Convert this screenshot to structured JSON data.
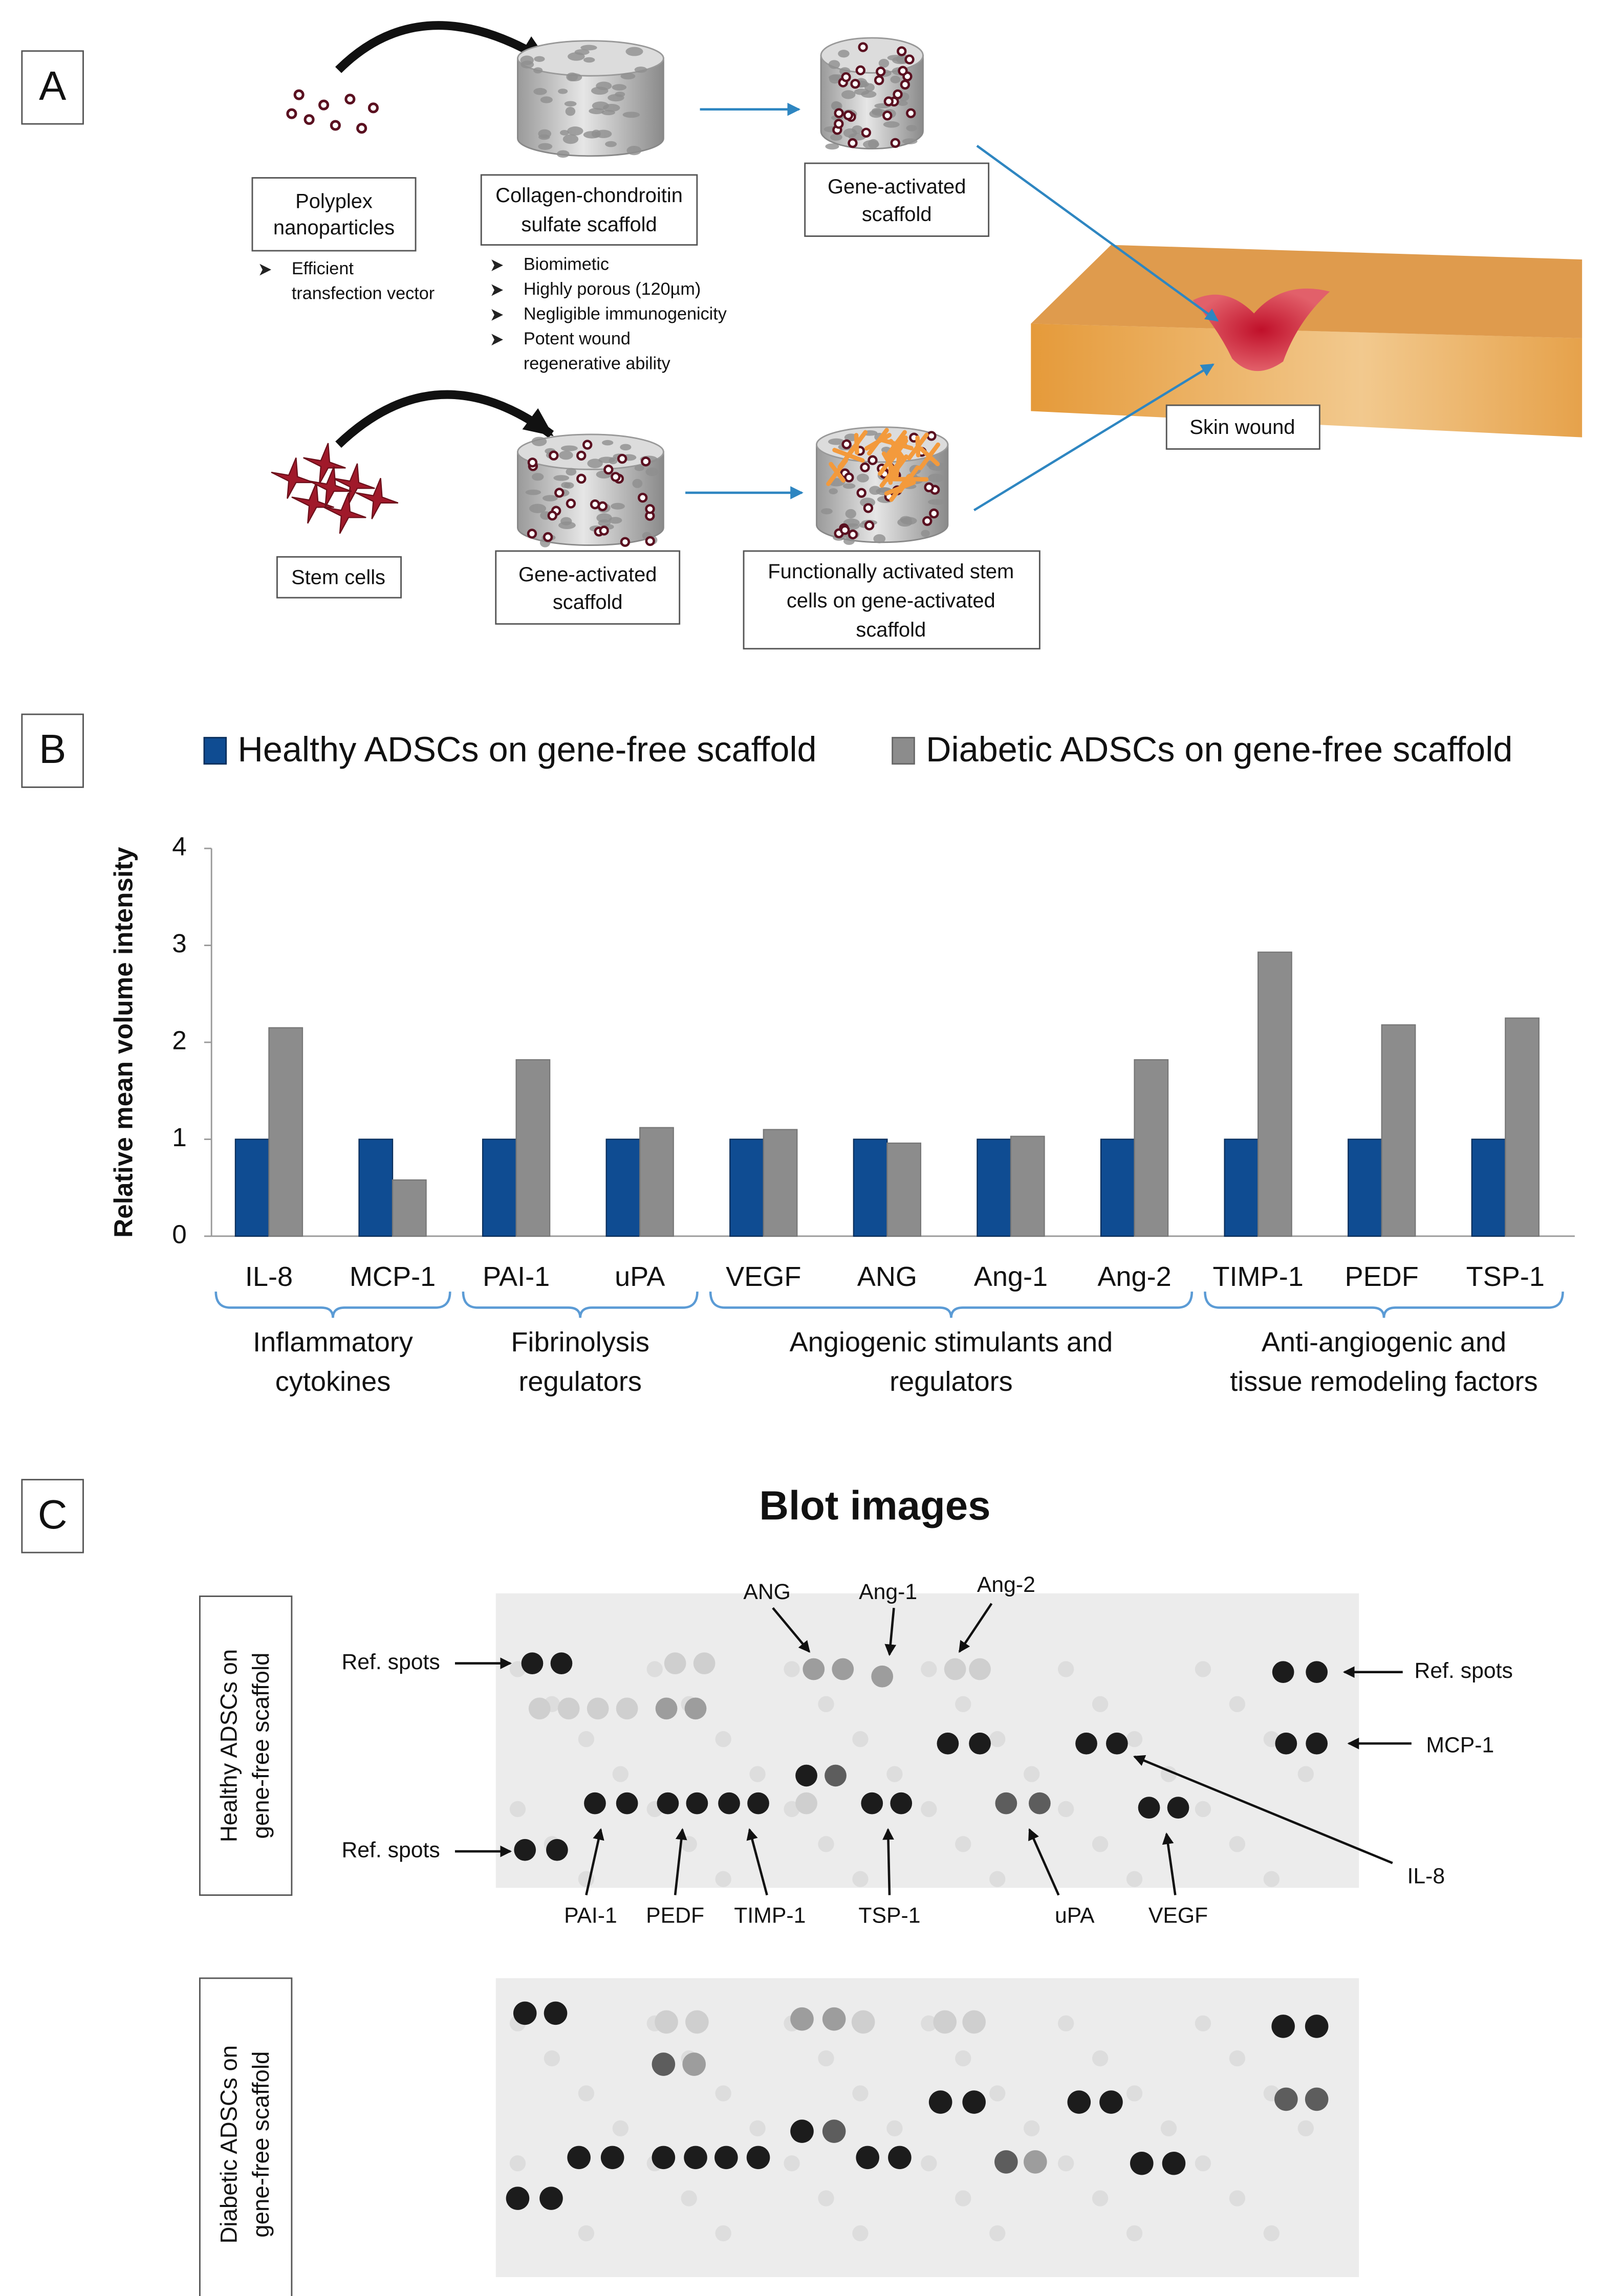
{
  "panel_labels": {
    "a": "A",
    "b": "B",
    "c": "C"
  },
  "panel_a": {
    "polyplex": {
      "lines": [
        "Polyplex",
        "nanoparticles"
      ],
      "bullets": [
        [
          "Efficient",
          "transfection vector"
        ]
      ]
    },
    "scaffold": {
      "lines": [
        "Collagen-chondroitin",
        "sulfate scaffold"
      ],
      "bullets": [
        [
          "Biomimetic"
        ],
        [
          "Highly porous (120µm)"
        ],
        [
          "Negligible immunogenicity"
        ],
        [
          "Potent wound",
          "regenerative ability"
        ]
      ]
    },
    "gene_activated_scaffold": {
      "lines": [
        "Gene-activated",
        "scaffold"
      ]
    },
    "skin_wound": "Skin wound",
    "stem_cells": "Stem cells",
    "gene_activated_scaffold_2": {
      "lines": [
        "Gene-activated",
        "scaffold"
      ]
    },
    "activated_stem_cells": {
      "lines": [
        "Functionally activated stem",
        "cells on gene-activated",
        "scaffold"
      ]
    }
  },
  "chart_data": {
    "type": "bar",
    "y_label": "Relative mean volume intensity",
    "categories": [
      "IL-8",
      "MCP-1",
      "PAI-1",
      "uPA",
      "VEGF",
      "ANG",
      "Ang-1",
      "Ang-2",
      "TIMP-1",
      "PEDF",
      "TSP-1"
    ],
    "series": [
      {
        "name": "Healthy ADSCs on gene-free scaffold",
        "color": "#0f4c92",
        "values": [
          1,
          1,
          1,
          1,
          1,
          1,
          1,
          1,
          1,
          1,
          1
        ]
      },
      {
        "name": "Diabetic ADSCs on gene-free scaffold",
        "color": "#8c8c8c",
        "values": [
          2.15,
          0.58,
          1.82,
          1.12,
          1.1,
          0.96,
          1.03,
          1.82,
          2.93,
          2.18,
          2.25
        ]
      }
    ],
    "groups": [
      {
        "lines": [
          "Inflammatory",
          "cytokines"
        ],
        "members": [
          "IL-8",
          "MCP-1"
        ]
      },
      {
        "lines": [
          "Fibrinolysis",
          "regulators"
        ],
        "members": [
          "PAI-1",
          "uPA"
        ]
      },
      {
        "lines": [
          "Angiogenic stimulants and",
          "regulators"
        ],
        "members": [
          "VEGF",
          "ANG",
          "Ang-1",
          "Ang-2"
        ]
      },
      {
        "lines": [
          "Anti-angiogenic and",
          "tissue remodeling factors"
        ],
        "members": [
          "TIMP-1",
          "PEDF",
          "TSP-1"
        ]
      }
    ],
    "ylim": [
      0,
      4
    ],
    "yticks": [
      0,
      1,
      2,
      3,
      4
    ],
    "grid": false,
    "legend": "top"
  },
  "panel_c": {
    "title": "Blot images",
    "blots": [
      {
        "lines": [
          "Healthy ADSCs on",
          "gene-free scaffold"
        ]
      },
      {
        "lines": [
          "Diabetic ADSCs on",
          "gene-free scaffold"
        ]
      }
    ],
    "annotations": [
      "Ref. spots",
      "Ref. spots",
      "Ref. spots",
      "MCP-1",
      "IL-8",
      "ANG",
      "Ang-1",
      "Ang-2",
      "PAI-1",
      "PEDF",
      "TIMP-1",
      "TSP-1",
      "uPA",
      "VEGF"
    ]
  }
}
